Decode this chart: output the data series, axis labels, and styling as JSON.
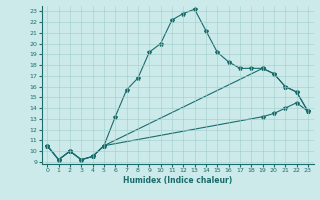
{
  "xlabel": "Humidex (Indice chaleur)",
  "background_color": "#cdeaea",
  "line_color": "#1a6b6b",
  "xlim": [
    -0.5,
    23.5
  ],
  "ylim": [
    8.8,
    23.5
  ],
  "xticks": [
    0,
    1,
    2,
    3,
    4,
    5,
    6,
    7,
    8,
    9,
    10,
    11,
    12,
    13,
    14,
    15,
    16,
    17,
    18,
    19,
    20,
    21,
    22,
    23
  ],
  "yticks": [
    9,
    10,
    11,
    12,
    13,
    14,
    15,
    16,
    17,
    18,
    19,
    20,
    21,
    22,
    23
  ],
  "line1_x": [
    0,
    1,
    2,
    3,
    4,
    5,
    6,
    7,
    8,
    9,
    10,
    11,
    12,
    13,
    14,
    15,
    16,
    17,
    18,
    19,
    20,
    21,
    22,
    23
  ],
  "line1_y": [
    10.5,
    9.2,
    10.0,
    9.2,
    9.5,
    10.5,
    13.2,
    15.7,
    16.8,
    19.2,
    20.0,
    22.2,
    22.8,
    23.2,
    21.2,
    19.2,
    18.3,
    17.7,
    17.7,
    17.7,
    17.2,
    16.0,
    15.5,
    13.7
  ],
  "line2_x": [
    0,
    1,
    2,
    3,
    4,
    5,
    19,
    20,
    21,
    22,
    23
  ],
  "line2_y": [
    10.5,
    9.2,
    10.0,
    9.2,
    9.5,
    10.5,
    17.7,
    17.2,
    16.0,
    15.5,
    13.7
  ],
  "line3_x": [
    0,
    1,
    2,
    3,
    4,
    5,
    19,
    20,
    21,
    22,
    23
  ],
  "line3_y": [
    10.5,
    9.2,
    10.0,
    9.2,
    9.5,
    10.5,
    13.2,
    13.5,
    14.0,
    14.5,
    13.7
  ],
  "grid_color": "#a0cccc",
  "markersize": 3
}
